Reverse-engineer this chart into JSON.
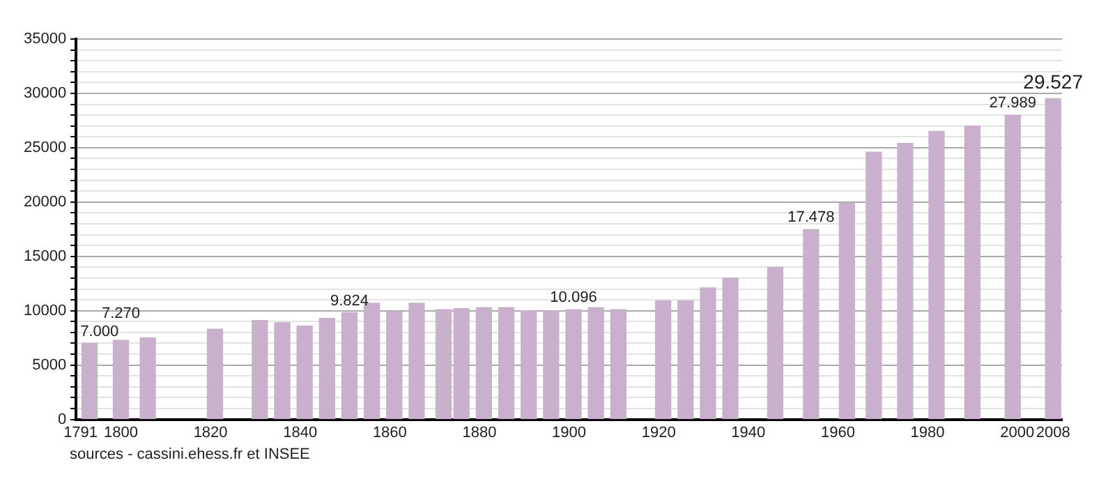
{
  "chart_data": {
    "type": "bar",
    "color": "#c9b1cd",
    "x": [
      1793,
      1800,
      1806,
      1821,
      1831,
      1836,
      1841,
      1846,
      1851,
      1856,
      1861,
      1866,
      1872,
      1876,
      1881,
      1886,
      1891,
      1896,
      1901,
      1906,
      1911,
      1921,
      1926,
      1931,
      1936,
      1946,
      1954,
      1962,
      1968,
      1975,
      1982,
      1990,
      1999,
      2008
    ],
    "values": [
      7000,
      7270,
      7500,
      8300,
      9100,
      8900,
      8600,
      9300,
      9824,
      10700,
      9900,
      10700,
      10100,
      10200,
      10300,
      10300,
      10000,
      10000,
      10096,
      10300,
      10100,
      10900,
      10900,
      12100,
      13000,
      14000,
      17478,
      19900,
      24600,
      25400,
      26500,
      27000,
      27989,
      29527
    ],
    "value_labels": [
      "7.000",
      "7.270",
      null,
      null,
      null,
      null,
      null,
      null,
      "9.824",
      null,
      null,
      null,
      null,
      null,
      null,
      null,
      null,
      null,
      "10.096",
      null,
      null,
      null,
      null,
      null,
      null,
      null,
      "17.478",
      null,
      null,
      null,
      null,
      null,
      "27.989",
      "29.527"
    ],
    "xlim": [
      1790,
      2010
    ],
    "xticks": [
      1791,
      1800,
      1820,
      1840,
      1860,
      1880,
      1900,
      1920,
      1940,
      1960,
      1980,
      2000,
      2008
    ],
    "ylim": [
      0,
      35000
    ],
    "yticks": [
      0,
      {
        "value": 1000,
        "label": null
      },
      {
        "value": 2000,
        "label": null
      },
      {
        "value": 3000,
        "label": null
      },
      {
        "value": 4000,
        "label": null
      },
      5000,
      {
        "value": 6000,
        "label": null
      },
      {
        "value": 7000,
        "label": null
      },
      {
        "value": 8000,
        "label": null
      },
      {
        "value": 9000,
        "label": null
      },
      10000,
      {
        "value": 11000,
        "label": null
      },
      {
        "value": 12000,
        "label": null
      },
      {
        "value": 13000,
        "label": null
      },
      {
        "value": 14000,
        "label": null
      },
      15000,
      {
        "value": 16000,
        "label": null
      },
      {
        "value": 17000,
        "label": null
      },
      {
        "value": 18000,
        "label": null
      },
      {
        "value": 19000,
        "label": null
      },
      20000,
      {
        "value": 21000,
        "label": null
      },
      {
        "value": 22000,
        "label": null
      },
      {
        "value": 23000,
        "label": null
      },
      {
        "value": 24000,
        "label": null
      },
      25000,
      {
        "value": 26000,
        "label": null
      },
      {
        "value": 27000,
        "label": null
      },
      {
        "value": 28000,
        "label": null
      },
      {
        "value": 29000,
        "label": null
      },
      30000,
      {
        "value": 31000,
        "label": null
      },
      {
        "value": 32000,
        "label": null
      },
      {
        "value": 33000,
        "label": null
      },
      {
        "value": 34000,
        "label": null
      },
      35000
    ],
    "grid": "y",
    "legend": false,
    "annotations": [
      "sources - cassini.ehess.fr et INSEE"
    ]
  }
}
